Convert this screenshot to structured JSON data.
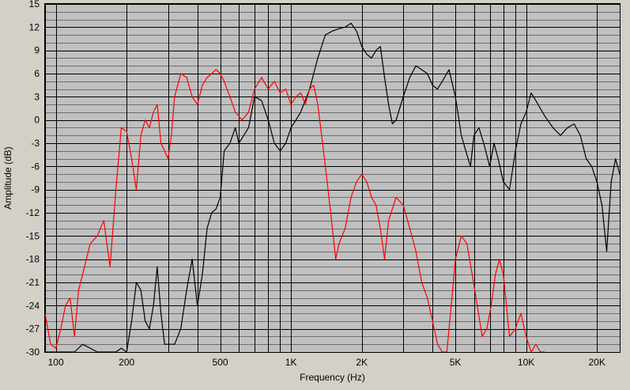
{
  "chart_data": {
    "type": "line",
    "title": "",
    "xlabel": "Frequency (Hz)",
    "ylabel": "Amplitude (dB)",
    "x_scale": "log",
    "xlim": [
      90,
      25000
    ],
    "ylim": [
      -30,
      15
    ],
    "grid": true,
    "legend": "none",
    "x_tick_labels": [
      {
        "value": 100,
        "label": "100"
      },
      {
        "value": 200,
        "label": "200"
      },
      {
        "value": 500,
        "label": "500"
      },
      {
        "value": 1000,
        "label": "1K"
      },
      {
        "value": 2000,
        "label": "2K"
      },
      {
        "value": 5000,
        "label": "5K"
      },
      {
        "value": 10000,
        "label": "10K"
      },
      {
        "value": 20000,
        "label": "20K"
      }
    ],
    "y_ticks": [
      15,
      12,
      9,
      6,
      3,
      0,
      -3,
      -6,
      -9,
      -12,
      -15,
      -18,
      -21,
      -24,
      -27,
      -30
    ],
    "colors": {
      "plot_bg": "#c0c0c0",
      "frame_bg": "#d4d0c8",
      "grid_major": "#000000",
      "grid_minor": "#6e6e6e"
    },
    "series": [
      {
        "color": "#000000",
        "x": [
          90,
          100,
          110,
          120,
          130,
          140,
          150,
          160,
          170,
          180,
          190,
          200,
          210,
          220,
          230,
          240,
          250,
          260,
          270,
          280,
          290,
          300,
          320,
          340,
          360,
          380,
          400,
          420,
          440,
          460,
          480,
          500,
          520,
          550,
          580,
          600,
          630,
          660,
          700,
          750,
          800,
          850,
          900,
          950,
          1000,
          1050,
          1100,
          1200,
          1300,
          1400,
          1500,
          1600,
          1700,
          1800,
          1900,
          2000,
          2100,
          2200,
          2300,
          2400,
          2500,
          2600,
          2700,
          2800,
          3000,
          3200,
          3400,
          3600,
          3800,
          4000,
          4200,
          4400,
          4700,
          5000,
          5300,
          5600,
          5800,
          6000,
          6300,
          6600,
          7000,
          7300,
          7600,
          8000,
          8500,
          9000,
          9500,
          10000,
          10500,
          11000,
          12000,
          13000,
          14000,
          15000,
          16000,
          17000,
          18000,
          19000,
          20000,
          21000,
          22000,
          23000,
          24000,
          25000
        ],
        "values": [
          -30,
          -30,
          -30,
          -30,
          -29,
          -29.5,
          -30,
          -30,
          -30,
          -30,
          -29.5,
          -30,
          -26,
          -21,
          -22,
          -26,
          -27,
          -24,
          -19,
          -25,
          -29,
          -29,
          -29,
          -27,
          -22,
          -18,
          -24,
          -20,
          -14,
          -12,
          -11.5,
          -10,
          -4,
          -3,
          -1,
          -3,
          -2,
          -1,
          3,
          2.5,
          0,
          -3,
          -4,
          -3,
          -1,
          0,
          1,
          4,
          8,
          11,
          11.5,
          11.8,
          12,
          12.5,
          11.5,
          9.5,
          8.5,
          8,
          9,
          9.5,
          5.5,
          2,
          -0.5,
          0,
          3,
          5.5,
          7,
          6.5,
          6,
          4.5,
          4,
          5,
          6.5,
          3,
          -2,
          -4.5,
          -6,
          -2,
          -1,
          -3,
          -6,
          -3,
          -5,
          -8,
          -9,
          -4,
          -0.5,
          1,
          3.5,
          2.5,
          0.5,
          -1,
          -2,
          -1,
          -0.5,
          -2,
          -5,
          -6,
          -8,
          -11,
          -17,
          -8,
          -5,
          -7
        ]
      },
      {
        "color": "#ff0000",
        "x": [
          90,
          95,
          100,
          105,
          110,
          115,
          120,
          125,
          130,
          140,
          150,
          160,
          170,
          180,
          190,
          200,
          210,
          220,
          230,
          240,
          250,
          260,
          270,
          280,
          290,
          300,
          310,
          320,
          340,
          360,
          380,
          400,
          420,
          440,
          460,
          480,
          500,
          520,
          550,
          580,
          620,
          660,
          700,
          750,
          800,
          850,
          900,
          950,
          1000,
          1050,
          1100,
          1150,
          1200,
          1250,
          1300,
          1350,
          1400,
          1450,
          1500,
          1550,
          1600,
          1700,
          1800,
          1900,
          2000,
          2100,
          2200,
          2300,
          2400,
          2500,
          2600,
          2800,
          3000,
          3200,
          3400,
          3600,
          3800,
          4000,
          4200,
          4400,
          4600,
          4800,
          5000,
          5300,
          5600,
          5900,
          6200,
          6500,
          6800,
          7100,
          7400,
          7700,
          8000,
          8500,
          9000,
          9500,
          10000,
          10500,
          11000,
          11500,
          12000
        ],
        "values": [
          -25,
          -29,
          -29.5,
          -27,
          -24,
          -23,
          -28,
          -22,
          -20,
          -16,
          -15,
          -13,
          -19,
          -9,
          -1,
          -1.5,
          -5,
          -9,
          -2,
          0,
          -1,
          1,
          2,
          -3,
          -4,
          -5,
          -2,
          3,
          6,
          5.5,
          3,
          2,
          4.5,
          5.5,
          6,
          6.5,
          6,
          5,
          3,
          1,
          0,
          1,
          4,
          5.5,
          4,
          5,
          3.5,
          4,
          2,
          3,
          3.5,
          2,
          4,
          4.5,
          2,
          -2,
          -6,
          -10,
          -14,
          -18,
          -16,
          -14,
          -10,
          -8,
          -7,
          -8,
          -10,
          -11,
          -14,
          -18,
          -13,
          -10,
          -11,
          -14,
          -17,
          -21,
          -23,
          -26,
          -29,
          -30,
          -30,
          -24,
          -18,
          -15,
          -16,
          -20,
          -24,
          -28,
          -27,
          -24,
          -20,
          -18,
          -20,
          -28,
          -27,
          -25,
          -28,
          -30,
          -29,
          -30,
          -30
        ]
      }
    ]
  }
}
